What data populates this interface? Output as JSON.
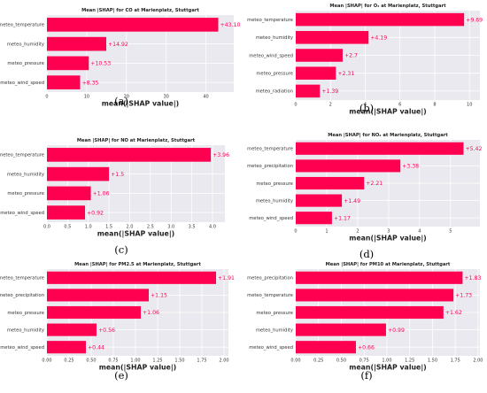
{
  "colors": {
    "bar": "#ff0051",
    "panel_bg": "#e9e9ef",
    "grid": "#ffffff"
  },
  "chart_data": [
    {
      "type": "bar",
      "orientation": "horizontal",
      "grid": true,
      "title": "Mean |SHAP| for CO at Marienplatz, Stuttgart",
      "subfigure_label": "(a)",
      "xlabel": "mean(|SHAP value|)",
      "categories": [
        "meteo_temperature",
        "meteo_humidity",
        "meteo_pressure",
        "meteo_wind_speed"
      ],
      "values": [
        43.1,
        14.92,
        10.53,
        8.35
      ],
      "value_labels": [
        "+43.10",
        "+14.92",
        "+10.53",
        "+8.35"
      ],
      "xlim": [
        0,
        47
      ],
      "xticks": [
        0,
        10,
        20,
        30,
        40
      ],
      "xtick_labels": [
        "0",
        "10",
        "20",
        "30",
        "40"
      ]
    },
    {
      "type": "bar",
      "orientation": "horizontal",
      "grid": true,
      "title": "Mean |SHAP| for O₃ at Marienplatz, Stuttgart",
      "subfigure_label": "(b)",
      "xlabel": "mean(|SHAP value|)",
      "categories": [
        "meteo_temperature",
        "meteo_humidity",
        "meteo_wind_speed",
        "meteo_pressure",
        "meteo_radiation"
      ],
      "values": [
        9.69,
        4.19,
        2.7,
        2.31,
        1.39
      ],
      "value_labels": [
        "+9.69",
        "+4.19",
        "+2.7",
        "+2.31",
        "+1.39"
      ],
      "xlim": [
        0,
        10.6
      ],
      "xticks": [
        0,
        2,
        4,
        6,
        8,
        10
      ],
      "xtick_labels": [
        "0",
        "2",
        "4",
        "6",
        "8",
        "10"
      ]
    },
    {
      "type": "bar",
      "orientation": "horizontal",
      "grid": true,
      "title": "Mean |SHAP| for NO at Marienplatz, Stuttgart",
      "subfigure_label": "(c)",
      "xlabel": "mean(|SHAP value|)",
      "categories": [
        "meteo_temperature",
        "meteo_humidity",
        "meteo_pressure",
        "meteo_wind_speed"
      ],
      "values": [
        3.96,
        1.5,
        1.06,
        0.92
      ],
      "value_labels": [
        "+3.96",
        "+1.5",
        "+1.06",
        "+0.92"
      ],
      "xlim": [
        0,
        4.3
      ],
      "xticks": [
        0,
        0.5,
        1,
        1.5,
        2,
        2.5,
        3,
        3.5,
        4
      ],
      "xtick_labels": [
        "0.0",
        "0.5",
        "1.0",
        "1.5",
        "2.0",
        "2.5",
        "3.0",
        "3.5",
        "4.0"
      ]
    },
    {
      "type": "bar",
      "orientation": "horizontal",
      "grid": true,
      "title": "Mean |SHAP| for NO₂ at Marienplatz, Stuttgart",
      "subfigure_label": "(d)",
      "xlabel": "mean(|SHAP value|)",
      "categories": [
        "meteo_temperature",
        "meteo_precipitation",
        "meteo_pressure",
        "meteo_humidity",
        "meteo_wind_speed"
      ],
      "values": [
        5.42,
        3.38,
        2.21,
        1.49,
        1.17
      ],
      "value_labels": [
        "+5.42",
        "+3.38",
        "+2.21",
        "+1.49",
        "+1.17"
      ],
      "xlim": [
        0,
        5.95
      ],
      "xticks": [
        0,
        1,
        2,
        3,
        4,
        5
      ],
      "xtick_labels": [
        "0",
        "1",
        "2",
        "3",
        "4",
        "5"
      ]
    },
    {
      "type": "bar",
      "orientation": "horizontal",
      "grid": true,
      "title": "Mean |SHAP| for PM2.5 at Marienplatz, Stuttgart",
      "subfigure_label": "(e)",
      "xlabel": "mean(|SHAP value|)",
      "categories": [
        "meteo_temperature",
        "meteo_precipitation",
        "meteo_pressure",
        "meteo_humidity",
        "meteo_wind_speed"
      ],
      "values": [
        1.91,
        1.15,
        1.06,
        0.56,
        0.44
      ],
      "value_labels": [
        "+1.91",
        "+1.15",
        "+1.06",
        "+0.56",
        "+0.44"
      ],
      "xlim": [
        0,
        2.05
      ],
      "xticks": [
        0,
        0.25,
        0.5,
        0.75,
        1,
        1.25,
        1.5,
        1.75,
        2
      ],
      "xtick_labels": [
        "0.00",
        "0.25",
        "0.50",
        "0.75",
        "1.00",
        "1.25",
        "1.50",
        "1.75",
        "2.00"
      ]
    },
    {
      "type": "bar",
      "orientation": "horizontal",
      "grid": true,
      "title": "Mean |SHAP| for PM10 at Marienplatz, Stuttgart",
      "subfigure_label": "(f)",
      "xlabel": "mean(|SHAP value|)",
      "categories": [
        "meteo_precipitation",
        "meteo_temperature",
        "meteo_pressure",
        "meteo_humidity",
        "meteo_wind_speed"
      ],
      "values": [
        1.83,
        1.73,
        1.62,
        0.99,
        0.66
      ],
      "value_labels": [
        "+1.83",
        "+1.73",
        "+1.62",
        "+0.99",
        "+0.66"
      ],
      "xlim": [
        0,
        2.02
      ],
      "xticks": [
        0,
        0.25,
        0.5,
        0.75,
        1,
        1.25,
        1.5,
        1.75,
        2
      ],
      "xtick_labels": [
        "0.00",
        "0.25",
        "0.50",
        "0.75",
        "1.00",
        "1.25",
        "1.50",
        "1.75",
        "2.00"
      ]
    }
  ]
}
